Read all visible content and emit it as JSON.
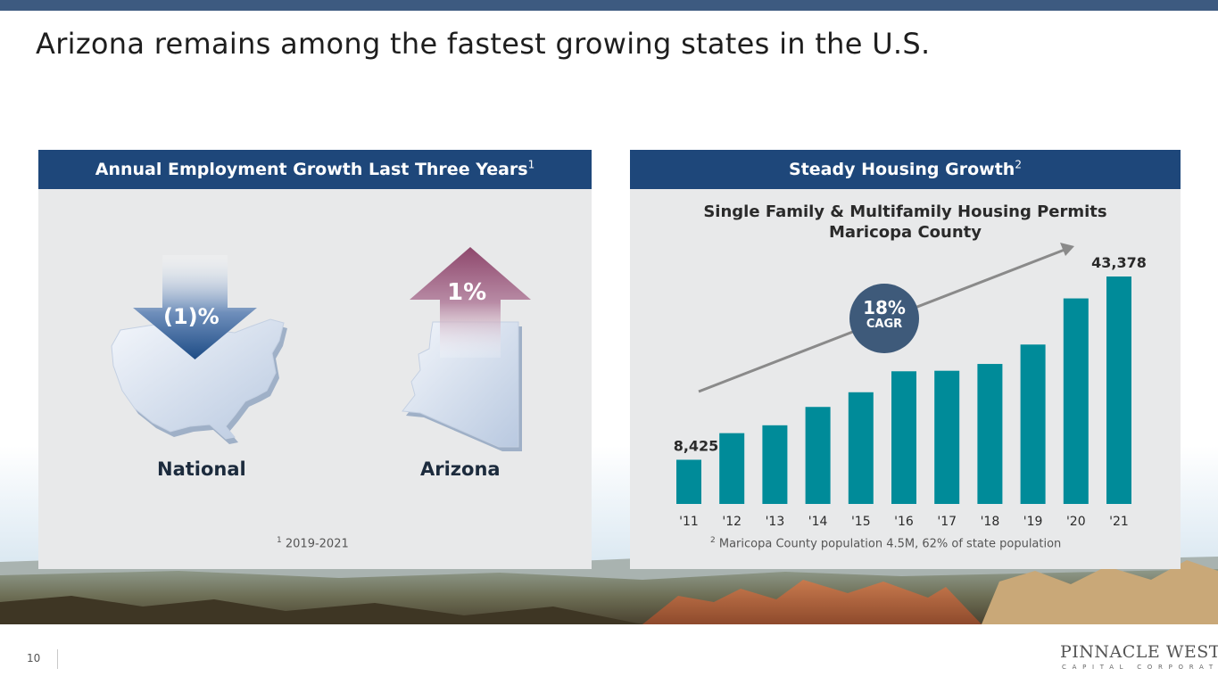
{
  "slide": {
    "title": "Arizona remains among the fastest growing states in the U.S.",
    "page_number": "10"
  },
  "left_panel": {
    "header": "Annual Employment Growth Last Three Years",
    "header_sup": "1",
    "national_value": "(1)%",
    "national_label": "National",
    "arizona_value": "1%",
    "arizona_label": "Arizona",
    "footnote_sup": "1",
    "footnote": "2019-2021"
  },
  "right_panel": {
    "header": "Steady Housing Growth",
    "header_sup": "2",
    "cagr_value": "18%",
    "cagr_label": "CAGR",
    "footnote_sup": "2",
    "footnote": "Maricopa County population 4.5M, 62% of state population"
  },
  "logo": {
    "name": "PINNACLE WEST",
    "sub": "CAPITAL CORPORATION"
  },
  "colors": {
    "header_blue": "#1e477a",
    "bar_teal": "#008b99",
    "down_arrow": "#1e4c86",
    "up_arrow": "#8e476c",
    "cagr_circle": "#3e5a7a"
  },
  "chart_data": {
    "type": "bar",
    "title": "Single Family & Multifamily Housing Permits",
    "subtitle": "Maricopa County",
    "categories": [
      "'11",
      "'12",
      "'13",
      "'14",
      "'15",
      "'16",
      "'17",
      "'18",
      "'19",
      "'20",
      "'21"
    ],
    "values": [
      8425,
      13500,
      15000,
      18500,
      21300,
      25300,
      25400,
      26700,
      30400,
      39200,
      43378
    ],
    "data_labels": {
      "first": "8,425",
      "last": "43,378"
    },
    "ylim": [
      0,
      43378
    ],
    "trend_annotation": "18% CAGR",
    "grid": false
  }
}
